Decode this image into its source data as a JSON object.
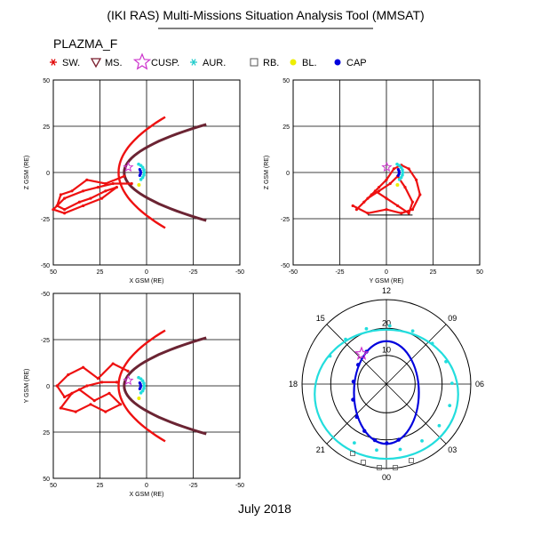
{
  "header": {
    "title": "(IKI RAS) Multi-Missions Situation Analysis Tool (MMSAT)",
    "subtitle": "PLAZMA_F",
    "footer": "July 2018"
  },
  "legend": {
    "items": [
      {
        "label": "SW.",
        "symbol": "asterisk",
        "color": "#e00000"
      },
      {
        "label": "MS.",
        "symbol": "triangle-down",
        "color": "#7a1f2e"
      },
      {
        "label": "CUSP.",
        "symbol": "star",
        "color": "#cc33cc"
      },
      {
        "label": "AUR.",
        "symbol": "asterisk",
        "color": "#22cccc"
      },
      {
        "label": "RB.",
        "symbol": "square",
        "color": "#555555"
      },
      {
        "label": "BL.",
        "symbol": "dot",
        "color": "#eeee00"
      },
      {
        "label": "CAP",
        "symbol": "dot",
        "color": "#0000dd"
      }
    ]
  },
  "colors": {
    "trajectory": "#ee1111",
    "magnetopause": "#6b2433",
    "aurora": "#22dddd",
    "cap": "#0000dd",
    "cusp": "#cc33cc",
    "grid": "#000000"
  },
  "chart_data": [
    {
      "type": "scatter",
      "name": "xz",
      "xlabel": "X GSM (RE)",
      "ylabel": "Z GSM (RE)",
      "xlim": [
        50,
        -50
      ],
      "ylim": [
        -50,
        50
      ],
      "xticks": [
        "50",
        "25",
        "0",
        "-25",
        "-50"
      ],
      "yticks": [
        "-50",
        "-25",
        "0",
        "25",
        "50"
      ],
      "grid": true,
      "magnetopause": {
        "nose_x": 12,
        "tail_x": -32,
        "flare_y": 26
      },
      "bow_shock": {
        "nose_x": 15,
        "tail_x": -10,
        "flare_y": 30
      },
      "trajectory_points": [
        [
          12,
          -2
        ],
        [
          22,
          -6
        ],
        [
          32,
          -4
        ],
        [
          40,
          -10
        ],
        [
          46,
          -12
        ],
        [
          48,
          -18
        ],
        [
          44,
          -20
        ],
        [
          36,
          -16
        ],
        [
          30,
          -14
        ],
        [
          22,
          -10
        ],
        [
          16,
          -8
        ],
        [
          24,
          -14
        ],
        [
          34,
          -18
        ],
        [
          44,
          -22
        ],
        [
          50,
          -20
        ],
        [
          44,
          -14
        ],
        [
          34,
          -10
        ],
        [
          26,
          -8
        ],
        [
          18,
          -6
        ],
        [
          8,
          -6
        ]
      ]
    },
    {
      "type": "scatter",
      "name": "yz",
      "xlabel": "Y GSM (RE)",
      "ylabel": "Z GSM (RE)",
      "xlim": [
        -50,
        50
      ],
      "ylim": [
        -50,
        50
      ],
      "xticks": [
        "-50",
        "-25",
        "0",
        "25",
        "50"
      ],
      "yticks": [
        "-50",
        "-25",
        "0",
        "25",
        "50"
      ],
      "grid": true,
      "trajectory_points": [
        [
          -18,
          -18
        ],
        [
          -10,
          -22
        ],
        [
          0,
          -20
        ],
        [
          8,
          -22
        ],
        [
          14,
          -20
        ],
        [
          18,
          -12
        ],
        [
          16,
          -4
        ],
        [
          12,
          2
        ],
        [
          8,
          4
        ],
        [
          4,
          2
        ],
        [
          0,
          -4
        ],
        [
          -4,
          -8
        ],
        [
          -8,
          -12
        ],
        [
          -12,
          -16
        ],
        [
          -16,
          -20
        ],
        [
          -10,
          -14
        ],
        [
          -4,
          -10
        ],
        [
          2,
          -6
        ],
        [
          6,
          -2
        ],
        [
          10,
          -8
        ],
        [
          14,
          -16
        ],
        [
          12,
          -22
        ],
        [
          6,
          -18
        ],
        [
          0,
          -14
        ],
        [
          -6,
          -10
        ]
      ]
    },
    {
      "type": "scatter",
      "name": "xy",
      "xlabel": "X GSM (RE)",
      "ylabel": "Y GSM (RE)",
      "xlim": [
        50,
        -50
      ],
      "ylim": [
        50,
        -50
      ],
      "xticks": [
        "50",
        "25",
        "0",
        "-25",
        "-50"
      ],
      "yticks": [
        "-50",
        "-25",
        "0",
        "25",
        "50"
      ],
      "grid": true,
      "trajectory_points": [
        [
          10,
          -8
        ],
        [
          18,
          -12
        ],
        [
          26,
          -4
        ],
        [
          34,
          -10
        ],
        [
          42,
          -6
        ],
        [
          48,
          0
        ],
        [
          44,
          6
        ],
        [
          36,
          2
        ],
        [
          28,
          8
        ],
        [
          20,
          4
        ],
        [
          14,
          10
        ],
        [
          22,
          14
        ],
        [
          30,
          10
        ],
        [
          38,
          14
        ],
        [
          46,
          12
        ],
        [
          40,
          4
        ],
        [
          32,
          0
        ],
        [
          24,
          -2
        ],
        [
          16,
          -2
        ]
      ]
    },
    {
      "type": "polar",
      "name": "mlt-invariant-latitude",
      "hour_labels": [
        "12",
        "15",
        "09",
        "18",
        "06",
        "21",
        "03",
        "00"
      ],
      "ring_labels": [
        "20",
        "10"
      ],
      "aurora_oval": {
        "radius_frac": 0.85,
        "center_offset_frac": 0.12
      },
      "cap_oval": {
        "radius_frac": 0.62,
        "center_offset_frac": 0.1
      }
    }
  ]
}
